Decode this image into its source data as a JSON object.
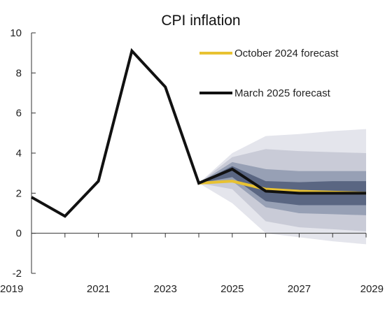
{
  "chart_data": {
    "type": "line",
    "title": "CPI inflation",
    "xlabel": "",
    "ylabel": "",
    "xlim": [
      2019,
      2029
    ],
    "ylim": [
      -2,
      10
    ],
    "x_ticks": [
      2019,
      2021,
      2023,
      2025,
      2027,
      2029
    ],
    "x_tick_labels": [
      "2019",
      "2021",
      "2023",
      "2025",
      "2027",
      "2029"
    ],
    "y_ticks": [
      -2,
      0,
      2,
      4,
      6,
      8,
      10
    ],
    "y_tick_labels": [
      "-2",
      "0",
      "2",
      "4",
      "6",
      "8",
      "10"
    ],
    "grid": false,
    "legend_position": "top-right",
    "series": [
      {
        "name": "October 2024 forecast",
        "color": "#e8c232",
        "x": [
          2024,
          2025,
          2026,
          2027,
          2028,
          2029
        ],
        "values": [
          2.5,
          2.6,
          2.2,
          2.1,
          2.05,
          2.0
        ]
      },
      {
        "name": "March 2025 forecast",
        "color": "#111111",
        "x": [
          2019,
          2020,
          2021,
          2022,
          2023,
          2024,
          2025,
          2026,
          2027,
          2028,
          2029
        ],
        "values": [
          1.8,
          0.85,
          2.6,
          9.1,
          7.3,
          2.5,
          3.2,
          2.1,
          2.0,
          2.0,
          2.0
        ]
      }
    ],
    "fan": {
      "x": [
        2024,
        2025,
        2026,
        2027,
        2028,
        2029
      ],
      "bands": [
        {
          "color": "#e4e5ec",
          "lower": [
            2.5,
            1.5,
            0.0,
            -0.2,
            -0.4,
            -0.55
          ],
          "upper": [
            2.5,
            4.0,
            4.85,
            4.95,
            5.1,
            5.2
          ]
        },
        {
          "color": "#c9cbd7",
          "lower": [
            2.5,
            2.2,
            0.6,
            0.3,
            0.2,
            0.1
          ],
          "upper": [
            2.5,
            3.8,
            4.2,
            4.1,
            4.05,
            4.0
          ]
        },
        {
          "color": "#97a0b5",
          "lower": [
            2.5,
            2.6,
            1.3,
            1.0,
            0.95,
            0.9
          ],
          "upper": [
            2.5,
            3.55,
            3.2,
            3.1,
            3.1,
            3.1
          ]
        },
        {
          "color": "#5a6682",
          "lower": [
            2.5,
            2.8,
            1.6,
            1.4,
            1.4,
            1.4
          ],
          "upper": [
            2.5,
            3.35,
            2.6,
            2.55,
            2.6,
            2.6
          ]
        }
      ]
    }
  }
}
